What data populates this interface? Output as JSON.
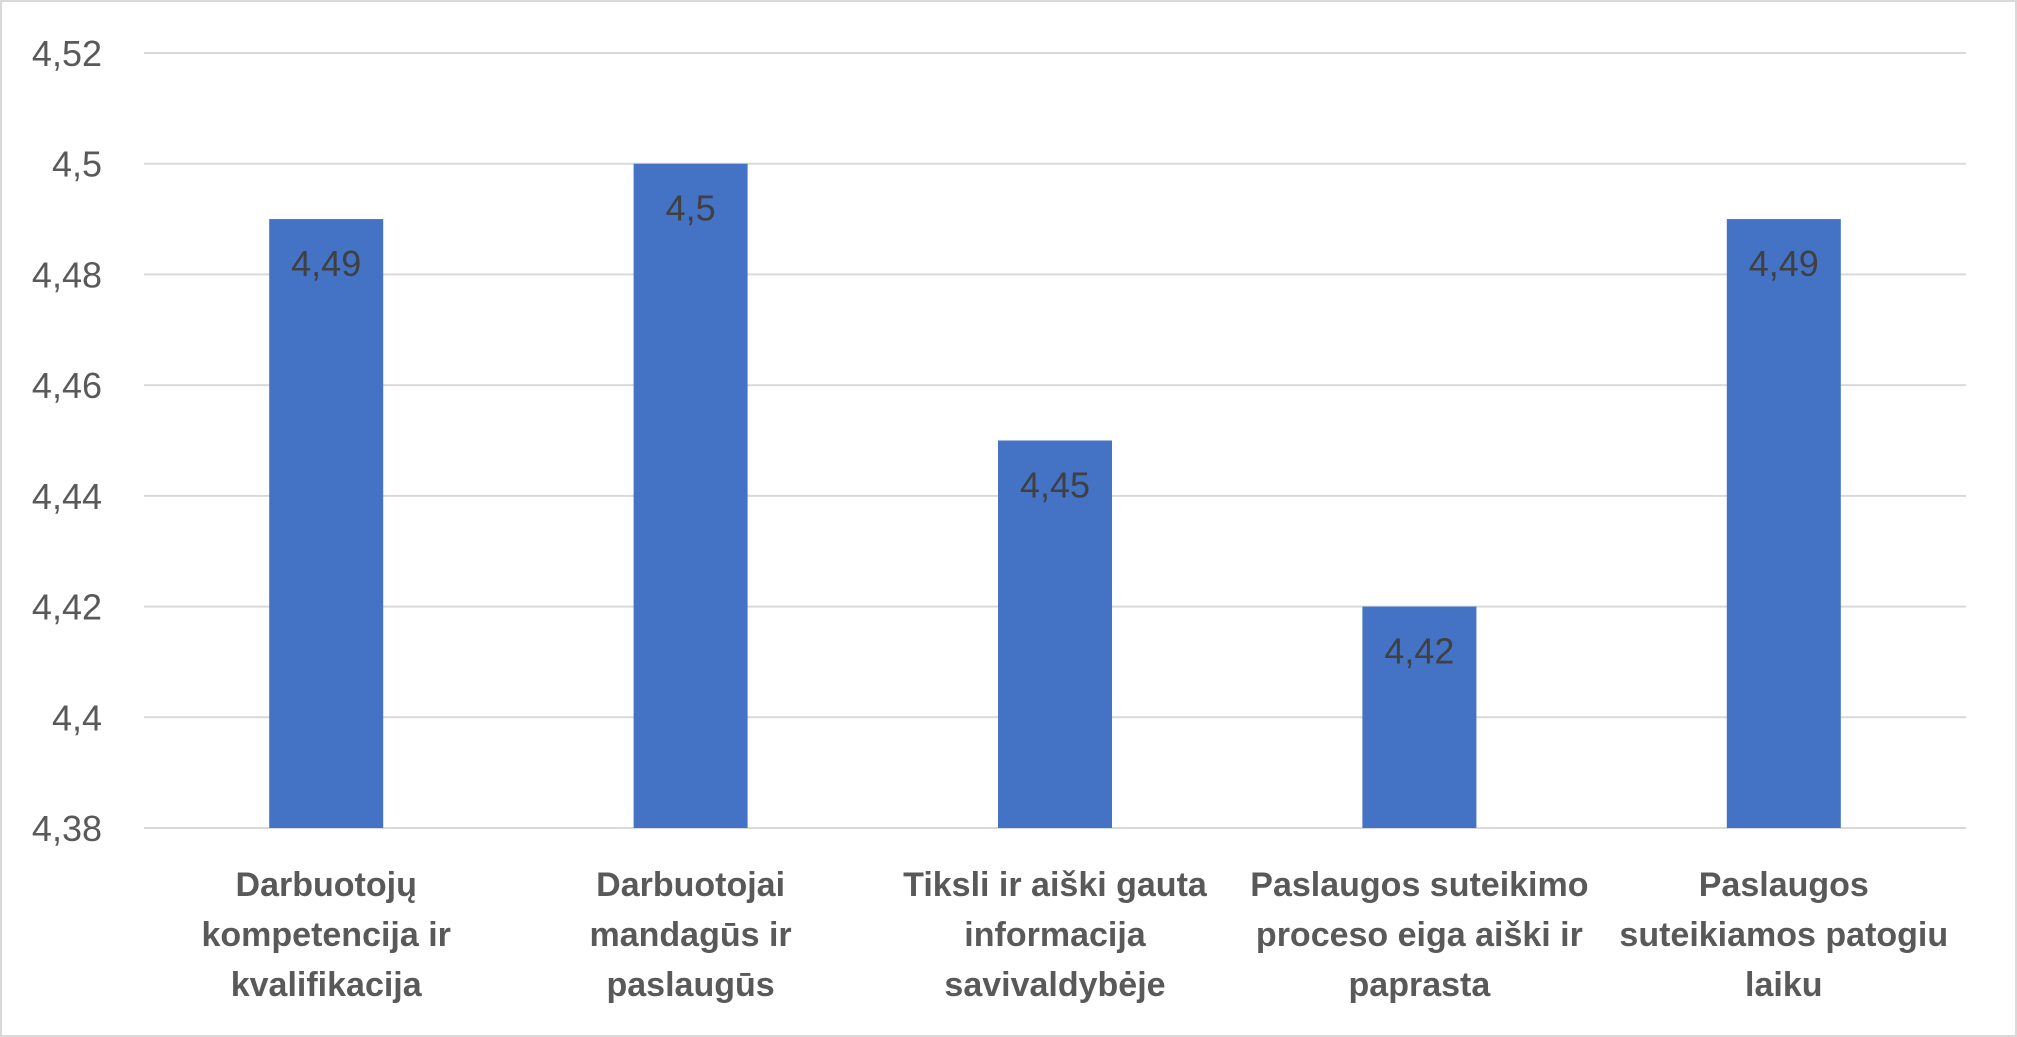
{
  "chart_data": {
    "type": "bar",
    "categories": [
      [
        "Darbuotojų",
        "kompetencija ir",
        "kvalifikacija"
      ],
      [
        "Darbuotojai",
        "mandagūs ir",
        "paslaugūs"
      ],
      [
        "Tiksli ir aiški gauta",
        "informacija",
        "savivaldybėje"
      ],
      [
        "Paslaugos suteikimo",
        "proceso eiga aiški ir",
        "paprasta"
      ],
      [
        "Paslaugos",
        "suteikiamos patogiu",
        "laiku"
      ]
    ],
    "values": [
      4.49,
      4.5,
      4.45,
      4.42,
      4.49
    ],
    "data_labels": [
      "4,49",
      "4,5",
      "4,45",
      "4,42",
      "4,49"
    ],
    "yticks": [
      {
        "value": 4.38,
        "label": "4,38"
      },
      {
        "value": 4.4,
        "label": "4,4"
      },
      {
        "value": 4.42,
        "label": "4,42"
      },
      {
        "value": 4.44,
        "label": "4,44"
      },
      {
        "value": 4.46,
        "label": "4,46"
      },
      {
        "value": 4.48,
        "label": "4,48"
      },
      {
        "value": 4.5,
        "label": "4,5"
      },
      {
        "value": 4.52,
        "label": "4,52"
      }
    ],
    "ylim": [
      4.38,
      4.52
    ],
    "grid": true,
    "legend": "none",
    "bar_color": "#4472c4",
    "title": "",
    "xlabel": "",
    "ylabel": ""
  }
}
